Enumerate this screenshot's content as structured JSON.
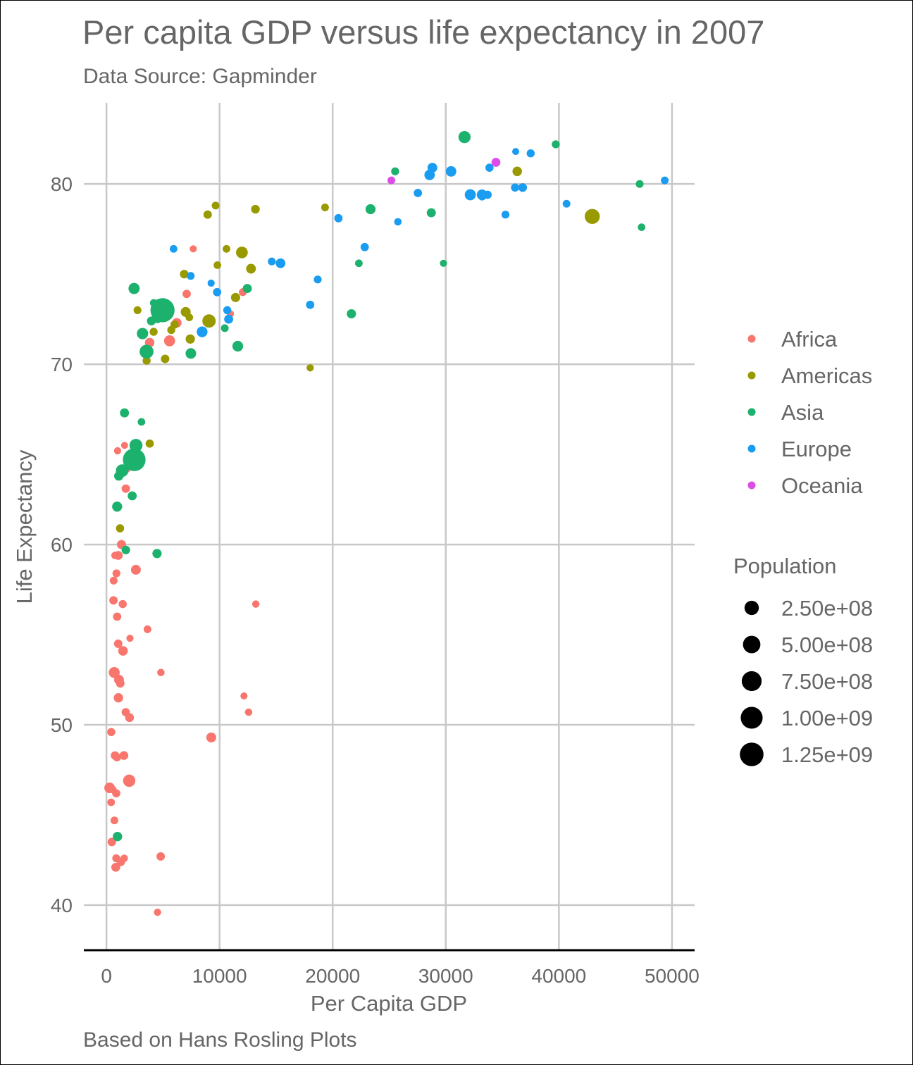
{
  "colors": {
    "Africa": "#F8766D",
    "Americas": "#999900",
    "Asia": "#1DB16E",
    "Europe": "#1A9CF0",
    "Oceania": "#DC4DE8",
    "text": "#666666",
    "grid": "#C8C8C8",
    "axis_line": "#000000"
  },
  "chart_data": {
    "type": "scatter",
    "title": "Per capita GDP versus life expectancy in 2007",
    "subtitle": "Data Source: Gapminder",
    "caption": "Based on Hans Rosling Plots",
    "xlabel": "Per Capita GDP",
    "ylabel": "Life Expectancy",
    "xlim": [
      -2000,
      52000
    ],
    "ylim": [
      37.5,
      84.5
    ],
    "x_ticks": [
      0,
      10000,
      20000,
      30000,
      40000,
      50000
    ],
    "x_tick_labels": [
      "0",
      "10000",
      "20000",
      "30000",
      "40000",
      "50000"
    ],
    "y_ticks": [
      40,
      50,
      60,
      70,
      80
    ],
    "y_tick_labels": [
      "40",
      "50",
      "60",
      "70",
      "80"
    ],
    "grid": true,
    "legend_position": "right",
    "color_legend": {
      "items": [
        "Africa",
        "Americas",
        "Asia",
        "Europe",
        "Oceania"
      ]
    },
    "size_legend": {
      "title": "Population",
      "values": [
        250000000,
        500000000,
        750000000,
        1000000000,
        1250000000
      ],
      "labels": [
        "2.50e+08",
        "5.00e+08",
        "7.50e+08",
        "1.00e+09",
        "1.25e+09"
      ]
    },
    "series": [
      {
        "name": "Africa",
        "points": [
          [
            6223,
            72.3,
            33
          ],
          [
            4797,
            42.7,
            12
          ],
          [
            1441,
            56.7,
            8
          ],
          [
            12570,
            50.7,
            2
          ],
          [
            1217,
            52.3,
            14
          ],
          [
            430,
            49.6,
            8
          ],
          [
            2042,
            50.4,
            18
          ],
          [
            706,
            44.7,
            4
          ],
          [
            1704,
            50.7,
            10
          ],
          [
            986,
            65.2,
            1
          ],
          [
            278,
            46.5,
            65
          ],
          [
            3633,
            55.3,
            4
          ],
          [
            1545,
            48.3,
            18
          ],
          [
            2082,
            54.8,
            0.5
          ],
          [
            5581,
            71.3,
            80
          ],
          [
            12154,
            51.6,
            0.6
          ],
          [
            641,
            58.0,
            5
          ],
          [
            691,
            52.9,
            77
          ],
          [
            13206,
            56.7,
            1.5
          ],
          [
            753,
            59.4,
            1.7
          ],
          [
            1327,
            60.0,
            23
          ],
          [
            943,
            56.0,
            10
          ],
          [
            579,
            46.4,
            1.5
          ],
          [
            1463,
            54.1,
            35
          ],
          [
            1569,
            42.6,
            2
          ],
          [
            414,
            45.7,
            3.2
          ],
          [
            12057,
            74.0,
            6
          ],
          [
            1044,
            59.4,
            19
          ],
          [
            759,
            48.3,
            13
          ],
          [
            1042,
            54.5,
            12
          ],
          [
            1803,
            64.2,
            3.3
          ],
          [
            10957,
            72.8,
            1.2
          ],
          [
            3820,
            71.2,
            33
          ],
          [
            824,
            42.1,
            20
          ],
          [
            4811,
            52.9,
            2
          ],
          [
            620,
            56.9,
            12
          ],
          [
            2014,
            46.9,
            135
          ],
          [
            7670,
            76.4,
            0.8
          ],
          [
            863,
            46.2,
            9
          ],
          [
            1598,
            65.5,
            0.2
          ],
          [
            1712,
            63.1,
            12
          ],
          [
            862,
            42.6,
            6
          ],
          [
            926,
            48.2,
            9
          ],
          [
            9270,
            49.3,
            44
          ],
          [
            2602,
            58.6,
            42
          ],
          [
            4513,
            39.6,
            1.1
          ],
          [
            1108,
            52.5,
            40
          ],
          [
            883,
            58.4,
            6
          ],
          [
            7093,
            73.9,
            10
          ],
          [
            1056,
            51.5,
            30
          ],
          [
            1271,
            42.4,
            12
          ],
          [
            470,
            43.5,
            12
          ]
        ]
      },
      {
        "name": "Americas",
        "points": [
          [
            12779,
            75.3,
            40
          ],
          [
            3822,
            65.6,
            9
          ],
          [
            9066,
            72.4,
            190
          ],
          [
            36319,
            80.7,
            33
          ],
          [
            13172,
            78.6,
            16
          ],
          [
            7007,
            72.9,
            44
          ],
          [
            9645,
            78.8,
            4
          ],
          [
            8948,
            78.3,
            11
          ],
          [
            6025,
            72.2,
            9
          ],
          [
            6873,
            75.0,
            14
          ],
          [
            5728,
            71.9,
            7
          ],
          [
            5186,
            70.3,
            13
          ],
          [
            1202,
            60.9,
            8.5
          ],
          [
            3548,
            70.2,
            7.5
          ],
          [
            7321,
            72.6,
            2.8
          ],
          [
            11978,
            76.2,
            108
          ],
          [
            2749,
            73.0,
            5.6
          ],
          [
            9809,
            75.5,
            3.2
          ],
          [
            4173,
            71.8,
            6.7
          ],
          [
            7409,
            71.4,
            28
          ],
          [
            19329,
            78.7,
            4
          ],
          [
            18009,
            69.8,
            1
          ],
          [
            42952,
            78.2,
            301
          ],
          [
            10611,
            76.4,
            3.4
          ],
          [
            11416,
            73.7,
            26
          ]
        ]
      },
      {
        "name": "Asia",
        "points": [
          [
            975,
            43.8,
            31
          ],
          [
            29796,
            75.6,
            0.7
          ],
          [
            1391,
            64.1,
            150
          ],
          [
            1713,
            59.7,
            14
          ],
          [
            4959,
            73.0,
            1318
          ],
          [
            39725,
            82.2,
            7
          ],
          [
            2452,
            64.7,
            1110
          ],
          [
            3541,
            70.7,
            224
          ],
          [
            11606,
            71.0,
            69
          ],
          [
            4471,
            59.5,
            27
          ],
          [
            25523,
            80.7,
            6.4
          ],
          [
            31656,
            82.6,
            127
          ],
          [
            4519,
            72.5,
            6
          ],
          [
            1593,
            67.3,
            23
          ],
          [
            23348,
            78.6,
            48
          ],
          [
            47307,
            77.6,
            2.5
          ],
          [
            10461,
            72.0,
            4
          ],
          [
            12452,
            74.2,
            24
          ],
          [
            3096,
            66.8,
            2.9
          ],
          [
            944,
            62.1,
            48
          ],
          [
            1091,
            63.8,
            28
          ],
          [
            22316,
            75.6,
            3.2
          ],
          [
            2606,
            65.5,
            169
          ],
          [
            3190,
            71.7,
            91
          ],
          [
            21655,
            72.8,
            27
          ],
          [
            47143,
            80.0,
            4.5
          ],
          [
            3970,
            72.4,
            20
          ],
          [
            28718,
            78.4,
            23
          ],
          [
            7458,
            70.6,
            65
          ],
          [
            2442,
            74.2,
            85
          ],
          [
            4185,
            73.4,
            4
          ],
          [
            2281,
            62.7,
            22
          ]
        ]
      },
      {
        "name": "Europe",
        "points": [
          [
            5937,
            76.4,
            3.6
          ],
          [
            36126,
            79.8,
            8.2
          ],
          [
            33693,
            79.4,
            10
          ],
          [
            7446,
            74.9,
            4.6
          ],
          [
            10681,
            73.0,
            7.3
          ],
          [
            14619,
            75.7,
            4.5
          ],
          [
            22834,
            76.5,
            10.2
          ],
          [
            35278,
            78.3,
            5.5
          ],
          [
            33207,
            79.3,
            5.2
          ],
          [
            30470,
            80.7,
            61
          ],
          [
            32170,
            79.4,
            82
          ],
          [
            27538,
            79.5,
            10.7
          ],
          [
            18009,
            73.3,
            10
          ],
          [
            36181,
            81.8,
            0.3
          ],
          [
            40676,
            78.9,
            4.1
          ],
          [
            28570,
            80.5,
            58
          ],
          [
            9254,
            74.5,
            0.7
          ],
          [
            36798,
            79.8,
            16.6
          ],
          [
            49357,
            80.2,
            4.6
          ],
          [
            15390,
            75.6,
            38.5
          ],
          [
            20510,
            78.1,
            10.6
          ],
          [
            10808,
            72.5,
            22
          ],
          [
            9787,
            74.0,
            10.2
          ],
          [
            18678,
            74.7,
            5.4
          ],
          [
            25768,
            77.9,
            2
          ],
          [
            28821,
            80.9,
            40
          ],
          [
            33860,
            80.9,
            9
          ],
          [
            37506,
            81.7,
            7.5
          ],
          [
            8458,
            71.8,
            71
          ],
          [
            33203,
            79.4,
            60.8
          ]
        ]
      },
      {
        "name": "Oceania",
        "points": [
          [
            34435,
            81.2,
            20.4
          ],
          [
            25185,
            80.2,
            4.1
          ]
        ]
      }
    ]
  }
}
